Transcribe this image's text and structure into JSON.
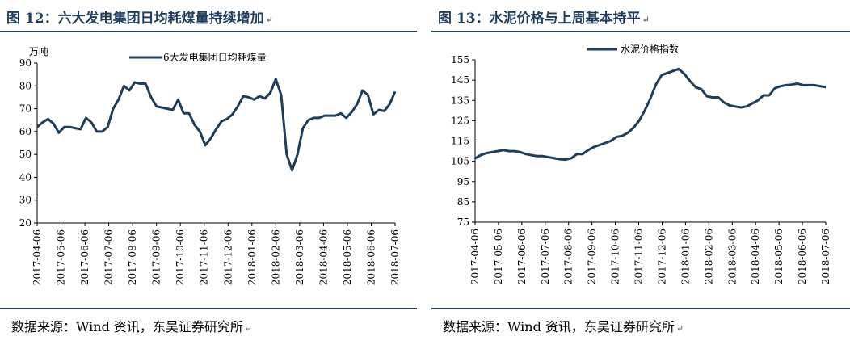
{
  "figures": [
    {
      "title": "图 12：六大发电集团日均耗煤量持续增加",
      "return_mark": "↵",
      "source": "数据来源：Wind 资讯，东吴证券研究所",
      "chart_data": {
        "type": "line",
        "unit_label": "万吨",
        "legend_position": "top",
        "grid": false,
        "line_color": "#1f3d5c",
        "ylim": [
          20,
          90
        ],
        "yticks": [
          "20",
          "30",
          "40",
          "50",
          "60",
          "70",
          "80",
          "90"
        ],
        "xticks": [
          "2017-04-06",
          "2017-05-06",
          "2017-06-06",
          "2017-07-06",
          "2017-08-06",
          "2017-09-06",
          "2017-10-06",
          "2017-11-06",
          "2017-12-06",
          "2018-01-06",
          "2018-02-06",
          "2018-03-06",
          "2018-04-06",
          "2018-05-06",
          "2018-06-06",
          "2018-07-06"
        ],
        "series": [
          {
            "name": "6大发电集团日均耗煤量",
            "values": [
              62,
              64,
              65.5,
              63.5,
              59.5,
              62,
              62,
              61.5,
              61,
              66,
              64,
              60,
              60,
              62,
              70,
              74,
              80,
              78,
              81.5,
              81,
              81,
              75,
              71,
              70.5,
              70,
              69.5,
              74,
              68,
              68,
              63,
              60,
              54,
              57,
              61,
              64.5,
              65.5,
              67.5,
              71,
              75.5,
              75,
              74,
              75.5,
              74.5,
              77,
              83,
              76,
              50,
              43,
              50,
              61.5,
              65,
              66,
              66,
              67,
              67,
              67,
              68,
              66,
              68.5,
              72,
              78,
              76,
              67.5,
              69.5,
              69,
              72,
              77.5
            ]
          }
        ]
      }
    },
    {
      "title": "图 13：水泥价格与上周基本持平",
      "return_mark": "↵",
      "source": "数据来源：Wind 资讯，东吴证券研究所",
      "chart_data": {
        "type": "line",
        "legend_position": "top",
        "grid": false,
        "line_color": "#1f3d5c",
        "ylim": [
          75,
          155
        ],
        "yticks": [
          "75",
          "85",
          "95",
          "105",
          "115",
          "125",
          "135",
          "145",
          "155"
        ],
        "xticks": [
          "2017-04-06",
          "2017-05-06",
          "2017-06-06",
          "2017-07-06",
          "2017-08-06",
          "2017-09-06",
          "2017-10-06",
          "2017-11-06",
          "2017-12-06",
          "2018-01-06",
          "2018-02-06",
          "2018-03-06",
          "2018-04-06",
          "2018-05-06",
          "2018-06-06",
          "2018-07-06"
        ],
        "series": [
          {
            "name": "水泥价格指数",
            "values": [
              106.5,
              108,
              109,
              109.5,
              110,
              110.5,
              110,
              110,
              109.5,
              108.5,
              108,
              107.5,
              107.5,
              107,
              106.5,
              106,
              105.8,
              106.5,
              108.5,
              108.5,
              110.5,
              112,
              113,
              114,
              115,
              117,
              117.5,
              119,
              121.5,
              125,
              130,
              136,
              143,
              147.5,
              148.5,
              149.5,
              150.5,
              148,
              144.5,
              141.5,
              140.5,
              137,
              136.5,
              136.5,
              134,
              132.5,
              132,
              131.5,
              132,
              133.5,
              135,
              137.5,
              137.5,
              141,
              142,
              142.5,
              142.8,
              143.3,
              142.5,
              142.5,
              142.5,
              142,
              141.5
            ]
          }
        ]
      }
    }
  ]
}
